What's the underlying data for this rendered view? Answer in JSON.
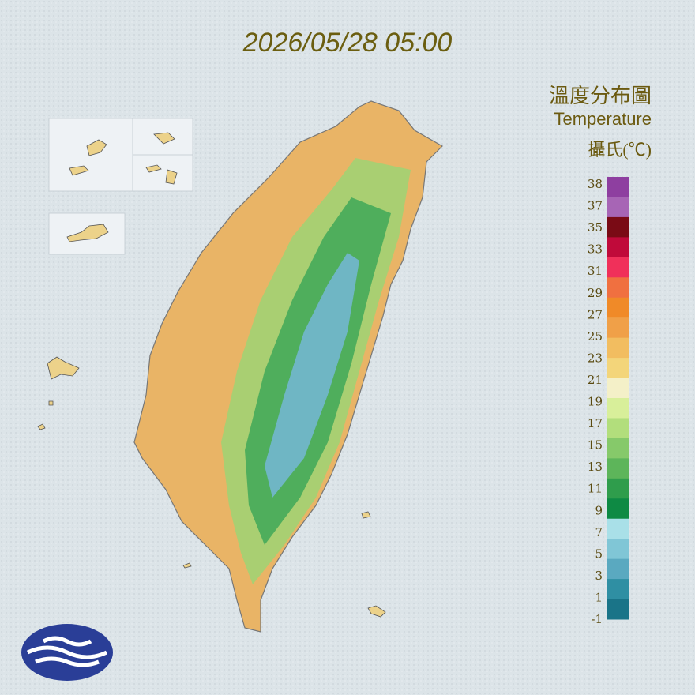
{
  "header": {
    "timestamp": "2026/05/28 05:00"
  },
  "legend": {
    "title": "溫度分布圖",
    "subtitle": "Temperature",
    "unit": "攝氏(℃)",
    "ticks": [
      38,
      37,
      35,
      33,
      31,
      29,
      27,
      25,
      23,
      21,
      19,
      17,
      15,
      13,
      11,
      9,
      7,
      5,
      3,
      1,
      -1
    ],
    "colors": [
      "#8e3fa0",
      "#a765b5",
      "#7a0b15",
      "#c00a3a",
      "#f0305a",
      "#f07040",
      "#f08a28",
      "#f0a048",
      "#f2bd60",
      "#f3d57a",
      "#f4f0c8",
      "#d8ef9a",
      "#b2de7c",
      "#86c96a",
      "#5db55a",
      "#2f9d4c",
      "#0e8a44",
      "#a9e0e8",
      "#80c6d6",
      "#5aa9c0",
      "#2f8fa3",
      "#1a7488"
    ]
  }
}
